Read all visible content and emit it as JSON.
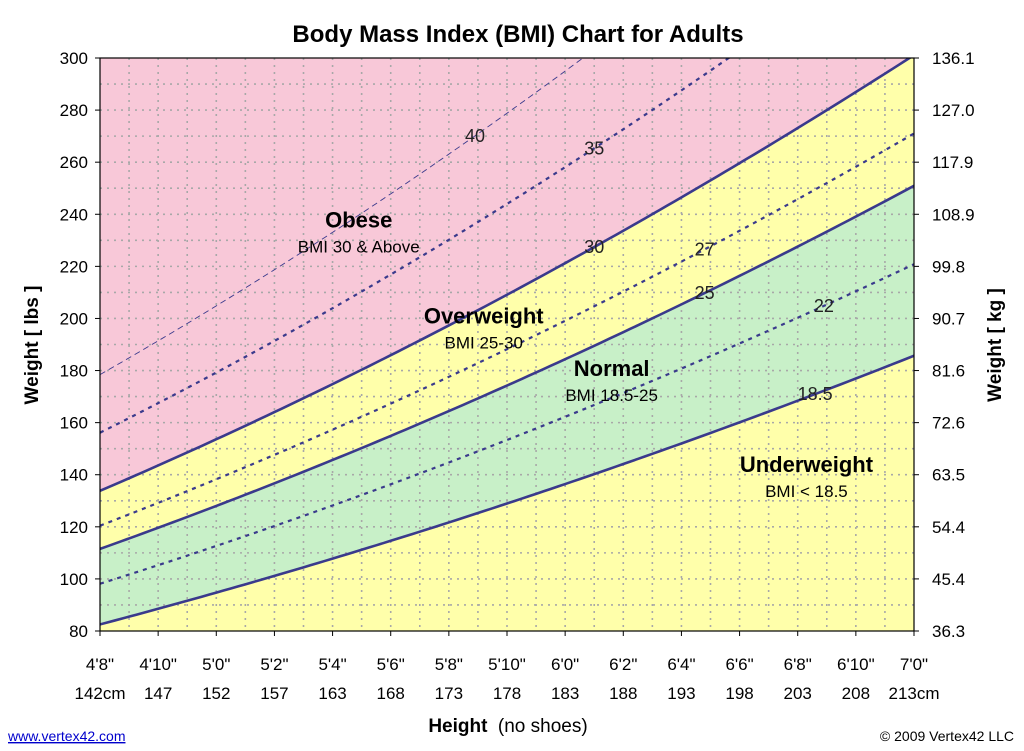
{
  "chart_data": {
    "type": "area",
    "title": "Body Mass Index (BMI) Chart for Adults",
    "xlabel": "Height",
    "xlabel_note": "(no shoes)",
    "ylabel_left": "Weight [ lbs ]",
    "ylabel_right": "Weight [ kg ]",
    "x_range_inches": [
      56,
      84
    ],
    "ylim": [
      80,
      300
    ],
    "x_ticks_in": [
      56,
      58,
      60,
      62,
      64,
      66,
      68,
      70,
      72,
      74,
      76,
      78,
      80,
      82,
      84
    ],
    "x_tick_labels_ftin": [
      "4'8\"",
      "4'10\"",
      "5'0\"",
      "5'2\"",
      "5'4\"",
      "5'6\"",
      "5'8\"",
      "5'10\"",
      "6'0\"",
      "6'2\"",
      "6'4\"",
      "6'6\"",
      "6'8\"",
      "6'10\"",
      "7'0\""
    ],
    "x_tick_labels_cm": [
      "142cm",
      "147",
      "152",
      "157",
      "163",
      "168",
      "173",
      "178",
      "183",
      "188",
      "193",
      "198",
      "203",
      "208",
      "213cm"
    ],
    "y_ticks_lbs": [
      80,
      100,
      120,
      140,
      160,
      180,
      200,
      220,
      240,
      260,
      280,
      300
    ],
    "y_tick_labels_kg": [
      "36.3",
      "45.4",
      "54.4",
      "63.5",
      "72.6",
      "81.6",
      "90.7",
      "99.8",
      "108.9",
      "117.9",
      "127.0",
      "136.1"
    ],
    "grid": true,
    "bmi_curves": [
      {
        "bmi": 18.5,
        "label": "18.5",
        "style": "solid",
        "label_x_in": 80.6
      },
      {
        "bmi": 22,
        "label": "22",
        "style": "dashed",
        "label_x_in": 80.9
      },
      {
        "bmi": 25,
        "label": "25",
        "style": "solid",
        "label_x_in": 76.8
      },
      {
        "bmi": 27,
        "label": "27",
        "style": "dashed",
        "label_x_in": 76.8
      },
      {
        "bmi": 30,
        "label": "30",
        "style": "solid",
        "label_x_in": 73.0
      },
      {
        "bmi": 35,
        "label": "35",
        "style": "dashed",
        "label_x_in": 73.0
      },
      {
        "bmi": 40,
        "label": "40",
        "style": "thin-dashed",
        "label_x_in": 68.9
      }
    ],
    "regions": [
      {
        "name": "Underweight",
        "range": "BMI < 18.5",
        "color": "#ffffaa",
        "label_x_in": 80.3,
        "label_y_lbs": 141
      },
      {
        "name": "Normal",
        "range": "BMI 18.5-25",
        "color": "#c8f0c8",
        "label_x_in": 73.6,
        "label_y_lbs": 178
      },
      {
        "name": "Overweight",
        "range": "BMI 25-30",
        "color": "#ffffaa",
        "label_x_in": 69.2,
        "label_y_lbs": 198
      },
      {
        "name": "Obese",
        "range": "BMI 30 & Above",
        "color": "#f8c8d8",
        "label_x_in": 64.9,
        "label_y_lbs": 235
      }
    ],
    "curve_color": "#3a3a8c"
  },
  "footer": {
    "website": "www.vertex42.com",
    "copyright": "© 2009 Vertex42 LLC"
  }
}
